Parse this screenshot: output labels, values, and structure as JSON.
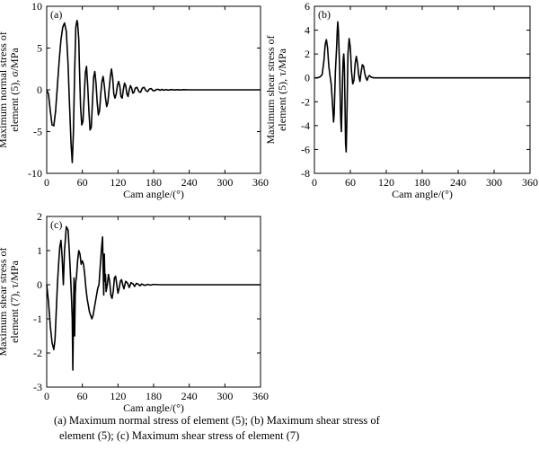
{
  "caption": {
    "line1": "(a)  Maximum  normal  stress  of  element (5); (b) Maximum shear stress of",
    "line2": "element (5);  (c)  Maximum  shear stress of element (7)"
  },
  "chart_data": [
    {
      "panel": "(a)",
      "type": "line",
      "xlabel": "Cam angle/(°)",
      "ylabel": "Maximum normal stress of element (5), σ/MPa",
      "ylabel_lines": [
        "Maximum normal stress of",
        "element (5), σ/MPa"
      ],
      "xlim": [
        0,
        360
      ],
      "ylim": [
        -10,
        10
      ],
      "xticks": [
        0,
        60,
        120,
        180,
        240,
        300,
        360
      ],
      "yticks": [
        -10,
        -5,
        0,
        5,
        10
      ],
      "xtick_labels": [
        "0",
        "60",
        "120",
        "180",
        "240",
        "300",
        "360"
      ],
      "ytick_labels": [
        "-10",
        "-5",
        "0",
        "5",
        "10"
      ],
      "series": [
        {
          "x": [
            0,
            3,
            6,
            9,
            12,
            15,
            18,
            21,
            24,
            27,
            30,
            33,
            36,
            38,
            41,
            43,
            45,
            47,
            49,
            51,
            52,
            54,
            55,
            57,
            59,
            61,
            63,
            65,
            67,
            69,
            71,
            73,
            75,
            77,
            79,
            81,
            83,
            85,
            87,
            89,
            91,
            93,
            95,
            97,
            99,
            101,
            103,
            105,
            107,
            109,
            111,
            113,
            115,
            117,
            119,
            121,
            123,
            125,
            127,
            129,
            131,
            133,
            135,
            137,
            139,
            141,
            143,
            145,
            147,
            149,
            152,
            155,
            158,
            161,
            164,
            167,
            170,
            173,
            176,
            179,
            182,
            185,
            188,
            191,
            194,
            197,
            200,
            205,
            210,
            215,
            220,
            225,
            230,
            240,
            250,
            260,
            270,
            280,
            300,
            320,
            340,
            360
          ],
          "y": [
            0,
            -0.5,
            -2.5,
            -4.2,
            -4.3,
            -2.5,
            0.5,
            3.5,
            6.0,
            7.5,
            8.0,
            7.0,
            3.0,
            -1.0,
            -6.5,
            -8.7,
            -5.0,
            2.0,
            7.5,
            8.3,
            8.0,
            6.0,
            3.0,
            -2.0,
            -4.2,
            -3.8,
            -1.0,
            2.0,
            2.8,
            0.5,
            -2.5,
            -4.8,
            -4.5,
            -1.5,
            1.5,
            2.2,
            0.8,
            -1.5,
            -3.0,
            -2.5,
            -0.5,
            1.0,
            1.6,
            0.5,
            -1.0,
            -2.0,
            -1.5,
            0.0,
            1.5,
            2.5,
            1.5,
            -0.5,
            -1.0,
            -0.5,
            0.5,
            1.0,
            0.5,
            -0.8,
            -1.0,
            0.0,
            0.8,
            0.5,
            -0.5,
            -0.8,
            0.0,
            0.5,
            0.2,
            -0.4,
            -0.3,
            0.2,
            0.3,
            -0.2,
            -0.3,
            0.2,
            0.3,
            -0.1,
            -0.2,
            0.1,
            0.15,
            -0.1,
            -0.1,
            0.05,
            0.05,
            -0.05,
            0.05,
            -0.05,
            0.03,
            -0.03,
            0.03,
            -0.02,
            0.02,
            -0.02,
            0.02,
            0,
            0,
            0,
            0,
            0,
            0,
            0,
            0,
            0
          ]
        }
      ]
    },
    {
      "panel": "(b)",
      "type": "line",
      "xlabel": "Cam angle/(°)",
      "ylabel": "Maximum shear stress of element (5), τ/MPa",
      "ylabel_lines": [
        "Maximum shear stress of",
        "element (5), τ/MPa"
      ],
      "xlim": [
        0,
        360
      ],
      "ylim": [
        -8,
        6
      ],
      "xticks": [
        0,
        60,
        120,
        180,
        240,
        300,
        360
      ],
      "yticks": [
        -8,
        -6,
        -4,
        -2,
        0,
        2,
        4,
        6
      ],
      "xtick_labels": [
        "0",
        "60",
        "120",
        "180",
        "240",
        "300",
        "360"
      ],
      "ytick_labels": [
        "-8",
        "-6",
        "-4",
        "-2",
        "0",
        "2",
        "4",
        "6"
      ],
      "series": [
        {
          "x": [
            0,
            5,
            10,
            13,
            16,
            18,
            20,
            22,
            24,
            26,
            28,
            30,
            32,
            33,
            35,
            37,
            38,
            39,
            40,
            42,
            43,
            44,
            45,
            46,
            47,
            48,
            49,
            50,
            51,
            52,
            53,
            54,
            55,
            56,
            58,
            60,
            62,
            64,
            66,
            68,
            70,
            72,
            74,
            76,
            78,
            80,
            82,
            84,
            86,
            88,
            90,
            92,
            95,
            100,
            110,
            120,
            140,
            160,
            200,
            250,
            300,
            360
          ],
          "y": [
            0,
            0,
            0.1,
            0.3,
            1.5,
            2.8,
            3.2,
            2.5,
            1.0,
            0.2,
            -0.5,
            -2.0,
            -3.7,
            -3.0,
            0.5,
            2.5,
            3.8,
            4.7,
            4.0,
            1.0,
            -1.5,
            -3.5,
            -4.5,
            -2.5,
            0.0,
            1.5,
            2.0,
            1.0,
            -2.0,
            -5.5,
            -6.2,
            -4.0,
            -1.0,
            2.0,
            3.3,
            2.5,
            0.5,
            -0.5,
            -0.2,
            1.2,
            1.8,
            1.2,
            0.2,
            -0.3,
            0.5,
            1.1,
            1.0,
            0.4,
            0.0,
            -0.2,
            0.1,
            0.2,
            0.05,
            0,
            0,
            0,
            0,
            0,
            0,
            0,
            0,
            0
          ]
        }
      ]
    },
    {
      "panel": "(c)",
      "type": "line",
      "xlabel": "Cam angle/(°)",
      "ylabel": "Maximum shear stress of element (7), τ/MPa",
      "ylabel_lines": [
        "Maximum shear stress of",
        "element (7), τ/MPa"
      ],
      "xlim": [
        0,
        360
      ],
      "ylim": [
        -3,
        2
      ],
      "xticks": [
        0,
        60,
        120,
        180,
        240,
        300,
        360
      ],
      "yticks": [
        -3,
        -2,
        -1,
        0,
        1,
        2
      ],
      "xtick_labels": [
        "0",
        "60",
        "120",
        "180",
        "240",
        "300",
        "360"
      ],
      "ytick_labels": [
        "-3",
        "-2",
        "-1",
        "0",
        "1",
        "2"
      ],
      "series": [
        {
          "x": [
            0,
            3,
            6,
            9,
            12,
            14,
            16,
            18,
            20,
            22,
            24,
            26,
            28,
            30,
            33,
            36,
            38,
            40,
            42,
            43,
            44,
            45,
            46,
            47,
            48,
            49,
            50,
            52,
            54,
            56,
            58,
            60,
            62,
            64,
            66,
            68,
            70,
            72,
            74,
            76,
            78,
            80,
            82,
            84,
            86,
            88,
            90,
            92,
            94,
            95,
            96,
            97,
            98,
            99,
            100,
            102,
            104,
            106,
            108,
            110,
            112,
            114,
            116,
            118,
            120,
            122,
            124,
            126,
            128,
            130,
            133,
            136,
            139,
            142,
            145,
            148,
            151,
            154,
            157,
            160,
            165,
            170,
            175,
            180,
            190,
            200,
            220,
            250,
            300,
            360
          ],
          "y": [
            0,
            -0.5,
            -1.2,
            -1.7,
            -1.9,
            -1.6,
            -0.8,
            0.0,
            0.6,
            1.1,
            1.3,
            0.8,
            0.0,
            1.0,
            1.7,
            1.6,
            1.0,
            0.3,
            -0.5,
            -1.0,
            -2.5,
            -1.0,
            0.2,
            -1.5,
            -0.3,
            0.1,
            0.2,
            0.7,
            1.0,
            0.9,
            0.6,
            0.7,
            0.6,
            0.3,
            -0.1,
            -0.4,
            -0.6,
            -0.8,
            -0.9,
            -1.0,
            -0.9,
            -0.7,
            -0.5,
            -0.3,
            -0.1,
            0.0,
            0.5,
            1.0,
            1.4,
            0.5,
            -0.3,
            0.9,
            0.1,
            0.3,
            -0.2,
            0.0,
            0.3,
            0.1,
            -0.3,
            -0.4,
            -0.2,
            0.2,
            0.25,
            0.0,
            -0.25,
            -0.1,
            0.1,
            0.15,
            0.0,
            -0.12,
            0.1,
            0.05,
            -0.08,
            0.06,
            0.03,
            -0.05,
            0.04,
            0.02,
            -0.03,
            0.02,
            -0.02,
            0.01,
            -0.01,
            0.01,
            0,
            0,
            0,
            0,
            0,
            0
          ]
        }
      ]
    }
  ]
}
